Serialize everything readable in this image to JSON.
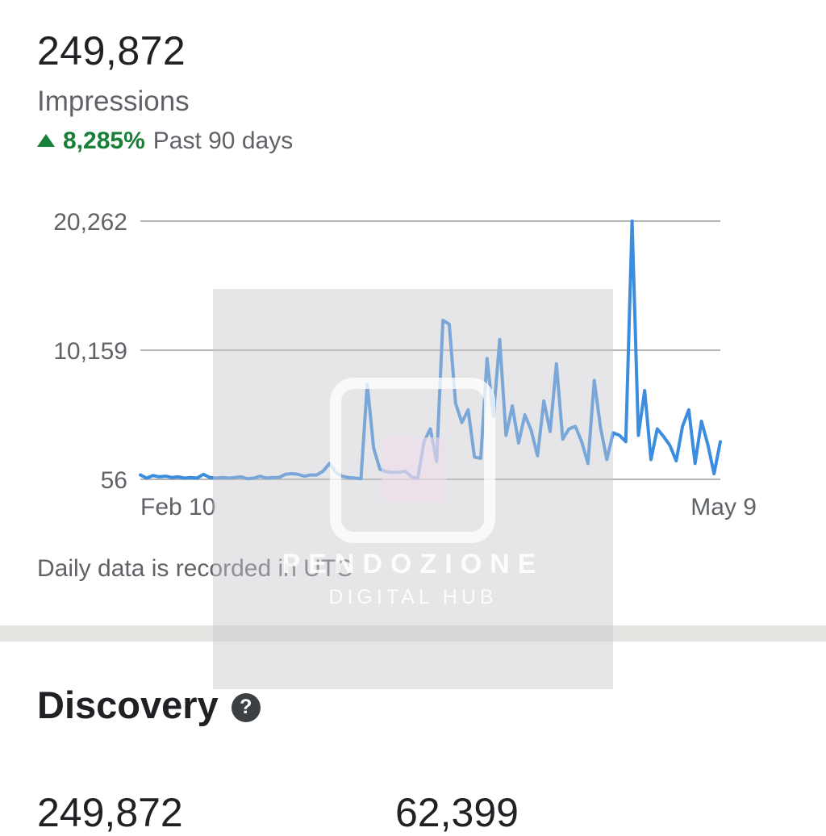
{
  "metric": {
    "value": "249,872",
    "label": "Impressions",
    "change_pct": "8,285%",
    "change_period": "Past 90 days"
  },
  "chart_data": {
    "type": "line",
    "title": "",
    "xlabel": "",
    "ylabel": "",
    "y_ticks": [
      "20,262",
      "10,159",
      "56"
    ],
    "x_ticks": [
      "Feb 10",
      "May 9"
    ],
    "ylim": [
      56,
      20262
    ],
    "grid": true,
    "colors": {
      "line": "#3b8de0",
      "grid": "#9e9e9e"
    },
    "series": [
      {
        "values": [
          400,
          150,
          350,
          250,
          300,
          200,
          250,
          150,
          200,
          150,
          450,
          200,
          150,
          200,
          150,
          200,
          250,
          100,
          150,
          300,
          150,
          200,
          200,
          450,
          500,
          450,
          300,
          400,
          400,
          700,
          1300,
          600,
          300,
          200,
          150,
          100,
          7500,
          2500,
          850,
          650,
          600,
          600,
          700,
          250,
          150,
          3000,
          4000,
          1450,
          12500,
          12200,
          6000,
          4500,
          5500,
          1800,
          1700,
          9500,
          5000,
          11000,
          3500,
          5800,
          2900,
          5100,
          3900,
          1900,
          6200,
          3800,
          9100,
          3200,
          4000,
          4200,
          3000,
          1300,
          7800,
          4100,
          1600,
          3700,
          3500,
          3000,
          20262,
          3500,
          7000,
          1600,
          4000,
          3400,
          2700,
          1500,
          4200,
          5500,
          1300,
          4600,
          2800,
          500,
          3000
        ]
      }
    ]
  },
  "footnote": "Daily data is recorded in UTC",
  "discovery": {
    "title": "Discovery",
    "help_icon": "question-circle-icon",
    "stat_1": "249,872",
    "stat_2": "62,399"
  },
  "watermark": {
    "brand": "PENDOZIONE",
    "subtitle": "DIGITAL HUB"
  }
}
